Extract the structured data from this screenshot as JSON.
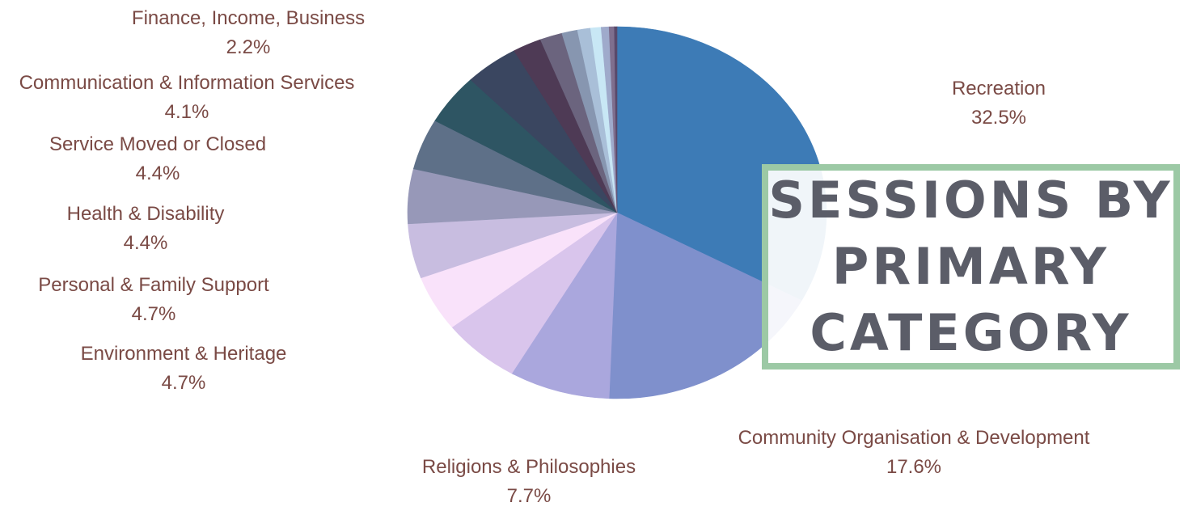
{
  "chart_data": {
    "type": "pie",
    "title": "Sessions by Primary Category",
    "slices": [
      {
        "label": "Recreation",
        "value": 32.5,
        "display": "32.5%",
        "color": "#3d7bb6",
        "show_label": true
      },
      {
        "label": "Community Organisation & Development",
        "value": 17.6,
        "display": "17.6%",
        "color": "#7f90cc",
        "show_label": true
      },
      {
        "label": "Religions & Philosophies",
        "value": 7.7,
        "display": "7.7%",
        "color": "#aaa7dd",
        "show_label": true
      },
      {
        "label": "",
        "value": 6.0,
        "display": "",
        "color": "#d9c5ec",
        "show_label": false
      },
      {
        "label": "",
        "value": 4.8,
        "display": "",
        "color": "#f9e2fa",
        "show_label": false
      },
      {
        "label": "Environment & Heritage",
        "value": 4.7,
        "display": "4.7%",
        "color": "#c8bde0",
        "show_label": true
      },
      {
        "label": "Personal & Family Support",
        "value": 4.7,
        "display": "4.7%",
        "color": "#9798b8",
        "show_label": true
      },
      {
        "label": "Health & Disability",
        "value": 4.4,
        "display": "4.4%",
        "color": "#5e7088",
        "show_label": true
      },
      {
        "label": "Service Moved or Closed",
        "value": 4.4,
        "display": "4.4%",
        "color": "#2e5563",
        "show_label": true
      },
      {
        "label": "Communication & Information Services",
        "value": 4.1,
        "display": "4.1%",
        "color": "#3a4660",
        "show_label": true
      },
      {
        "label": "Finance, Income, Business",
        "value": 2.2,
        "display": "2.2%",
        "color": "#4e3a55",
        "show_label": true
      },
      {
        "label": "",
        "value": 1.7,
        "display": "",
        "color": "#6b647e",
        "show_label": false
      },
      {
        "label": "",
        "value": 1.2,
        "display": "",
        "color": "#8796b0",
        "show_label": false
      },
      {
        "label": "",
        "value": 1.0,
        "display": "",
        "color": "#a9bfd8",
        "show_label": false
      },
      {
        "label": "",
        "value": 0.8,
        "display": "",
        "color": "#c8e7f5",
        "show_label": false
      },
      {
        "label": "",
        "value": 0.6,
        "display": "",
        "color": "#9faacb",
        "show_label": false
      },
      {
        "label": "",
        "value": 0.4,
        "display": "",
        "color": "#7f6f8e",
        "show_label": false
      },
      {
        "label": "",
        "value": 0.2,
        "display": "",
        "color": "#59496a",
        "show_label": false
      }
    ]
  },
  "title_box": {
    "line1": "Sessions by",
    "line2": "Primary",
    "line3": "Category",
    "border_color": "#9cc9a5",
    "text_color": "#5b5d68"
  },
  "labels": {
    "recreation": {
      "name": "Recreation",
      "pct": "32.5%"
    },
    "community": {
      "name": "Community Organisation & Development",
      "pct": "17.6%"
    },
    "religions": {
      "name": "Religions & Philosophies",
      "pct": "7.7%"
    },
    "environment": {
      "name": "Environment & Heritage",
      "pct": "4.7%"
    },
    "personal": {
      "name": "Personal & Family Support",
      "pct": "4.7%"
    },
    "health": {
      "name": "Health & Disability",
      "pct": "4.4%"
    },
    "service": {
      "name": "Service Moved or Closed",
      "pct": "4.4%"
    },
    "communication": {
      "name": "Communication & Information Services",
      "pct": "4.1%"
    },
    "finance": {
      "name": "Finance, Income, Business",
      "pct": "2.2%"
    }
  }
}
